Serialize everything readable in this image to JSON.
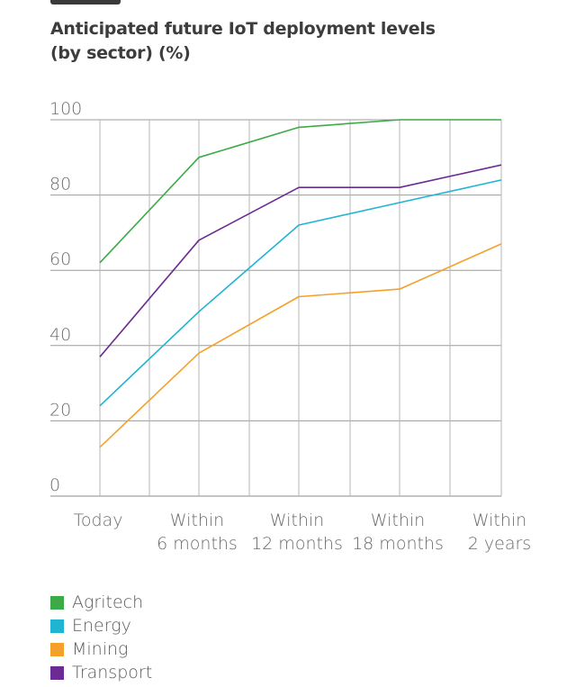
{
  "title_line1": "Anticipated future IoT deployment levels",
  "title_line2": "(by sector) (%)",
  "chart_data": {
    "type": "line",
    "title": "Anticipated future IoT deployment levels (by sector) (%)",
    "categories": [
      [
        "Today"
      ],
      [
        "Within",
        "6 months"
      ],
      [
        "Within",
        "12 months"
      ],
      [
        "Within",
        "18 months"
      ],
      [
        "Within",
        "2 years"
      ]
    ],
    "ylim": [
      0,
      100
    ],
    "yticks": [
      0,
      20,
      40,
      60,
      80,
      100
    ],
    "grid": true,
    "legend_position": "bottom-left",
    "series": [
      {
        "name": "Agritech",
        "color": "#3daa48",
        "values": [
          62,
          90,
          98,
          100,
          100
        ]
      },
      {
        "name": "Energy",
        "color": "#1fb4d2",
        "values": [
          24,
          49,
          72,
          78,
          84
        ]
      },
      {
        "name": "Mining",
        "color": "#f3a12a",
        "values": [
          13,
          38,
          53,
          55,
          67
        ]
      },
      {
        "name": "Transport",
        "color": "#6b2b92",
        "values": [
          37,
          68,
          82,
          82,
          88
        ]
      }
    ]
  }
}
